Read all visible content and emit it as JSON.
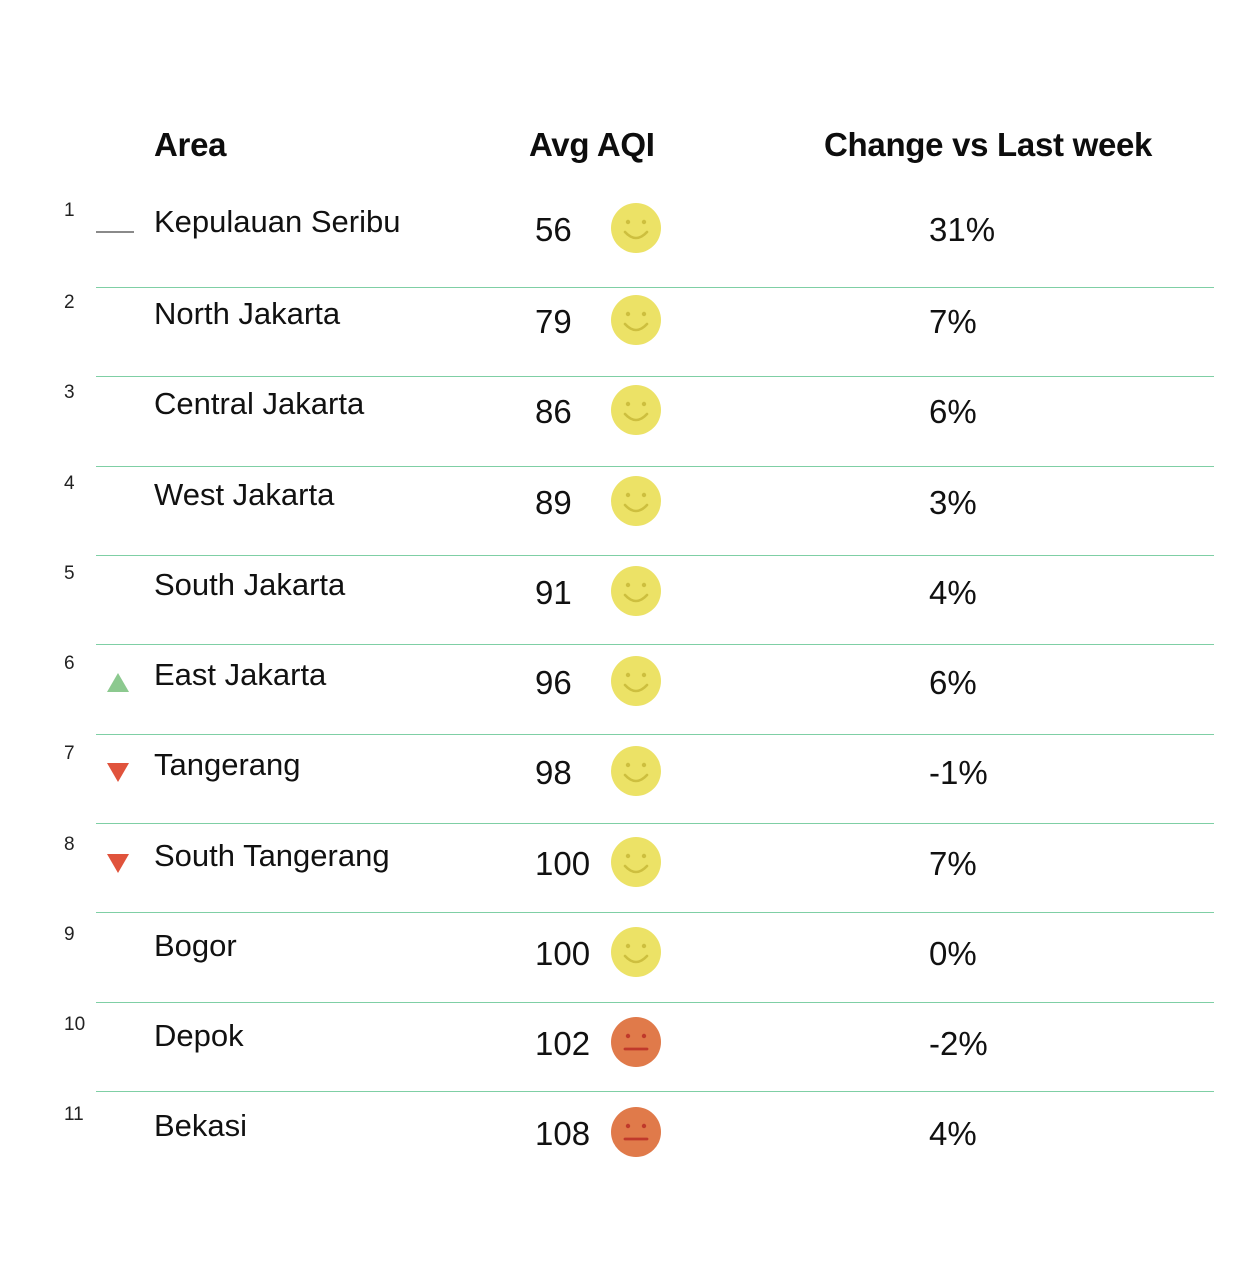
{
  "headers": {
    "area": "Area",
    "aqi": "Avg AQI",
    "change": "Change vs Last week"
  },
  "colors": {
    "good": "#ece266",
    "good_feature": "#cdbf3f",
    "moderate": "#e07a4a",
    "moderate_feature": "#c0392b",
    "up": "#8cc98f",
    "down": "#e0533c",
    "divider": "#7fcfa5"
  },
  "rows": [
    {
      "rank": "1",
      "trend": "same",
      "area": "Kepulauan Seribu",
      "aqi": "56",
      "face": "good",
      "change": "31%"
    },
    {
      "rank": "2",
      "trend": "none",
      "area": "North Jakarta",
      "aqi": "79",
      "face": "good",
      "change": "7%"
    },
    {
      "rank": "3",
      "trend": "none",
      "area": "Central Jakarta",
      "aqi": "86",
      "face": "good",
      "change": "6%"
    },
    {
      "rank": "4",
      "trend": "none",
      "area": "West Jakarta",
      "aqi": "89",
      "face": "good",
      "change": "3%"
    },
    {
      "rank": "5",
      "trend": "none",
      "area": "South Jakarta",
      "aqi": "91",
      "face": "good",
      "change": "4%"
    },
    {
      "rank": "6",
      "trend": "up",
      "area": "East Jakarta",
      "aqi": "96",
      "face": "good",
      "change": "6%"
    },
    {
      "rank": "7",
      "trend": "down",
      "area": "Tangerang",
      "aqi": "98",
      "face": "good",
      "change": "-1%"
    },
    {
      "rank": "8",
      "trend": "down",
      "area": "South Tangerang",
      "aqi": "100",
      "face": "good",
      "change": "7%"
    },
    {
      "rank": "9",
      "trend": "none",
      "area": "Bogor",
      "aqi": "100",
      "face": "good",
      "change": "0%"
    },
    {
      "rank": "10",
      "trend": "none",
      "area": "Depok",
      "aqi": "102",
      "face": "moderate",
      "change": "-2%"
    },
    {
      "rank": "11",
      "trend": "none",
      "area": "Bekasi",
      "aqi": "108",
      "face": "moderate",
      "change": "4%"
    }
  ],
  "chart_data": {
    "type": "table",
    "columns": [
      "Area",
      "Avg AQI",
      "Change vs Last week"
    ],
    "rows": [
      [
        "Kepulauan Seribu",
        56,
        "31%"
      ],
      [
        "North Jakarta",
        79,
        "7%"
      ],
      [
        "Central Jakarta",
        86,
        "6%"
      ],
      [
        "West Jakarta",
        89,
        "3%"
      ],
      [
        "South Jakarta",
        91,
        "4%"
      ],
      [
        "East Jakarta",
        96,
        "6%"
      ],
      [
        "Tangerang",
        98,
        "-1%"
      ],
      [
        "South Tangerang",
        100,
        "7%"
      ],
      [
        "Bogor",
        100,
        "0%"
      ],
      [
        "Depok",
        102,
        "-2%"
      ],
      [
        "Bekasi",
        108,
        "4%"
      ]
    ]
  }
}
